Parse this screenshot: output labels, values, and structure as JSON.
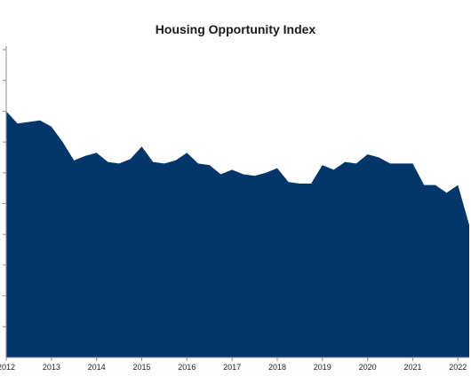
{
  "colors": {
    "area_fill": "#04366C",
    "background": "#ffffff",
    "axis": "#8c8c8c"
  },
  "chart_data": {
    "type": "area",
    "title": "Housing Opportunity Index",
    "xlabel": "",
    "ylabel": "",
    "grid": false,
    "legend": "none",
    "x_range": [
      2012.0,
      2022.25
    ],
    "y_range": [
      0,
      10
    ],
    "y_ticks": [
      1,
      2,
      3,
      4,
      5,
      6,
      7,
      8,
      9,
      10
    ],
    "x_tick_labels": [
      "2012",
      "2013",
      "2014",
      "2015",
      "2016",
      "2017",
      "2018",
      "2019",
      "2020",
      "2021",
      "2022"
    ],
    "x_tick_values": [
      2012,
      2013,
      2014,
      2015,
      2016,
      2017,
      2018,
      2019,
      2020,
      2021,
      2022
    ],
    "series": [
      {
        "x": [
          2012.0,
          2012.25,
          2012.5,
          2012.75,
          2013.0,
          2013.25,
          2013.5,
          2013.75,
          2014.0,
          2014.25,
          2014.5,
          2014.75,
          2015.0,
          2015.25,
          2015.5,
          2015.75,
          2016.0,
          2016.25,
          2016.5,
          2016.75,
          2017.0,
          2017.25,
          2017.5,
          2017.75,
          2018.0,
          2018.25,
          2018.5,
          2018.75,
          2019.0,
          2019.25,
          2019.5,
          2019.75,
          2020.0,
          2020.25,
          2020.5,
          2020.75,
          2021.0,
          2021.25,
          2021.5,
          2021.75,
          2022.0,
          2022.25
        ],
        "values": [
          8.0,
          7.6,
          7.65,
          7.7,
          7.5,
          7.0,
          6.4,
          6.55,
          6.65,
          6.35,
          6.3,
          6.45,
          6.85,
          6.35,
          6.3,
          6.4,
          6.65,
          6.3,
          6.25,
          5.95,
          6.1,
          5.95,
          5.9,
          6.0,
          6.15,
          5.7,
          5.65,
          5.65,
          6.25,
          6.1,
          6.35,
          6.3,
          6.6,
          6.5,
          6.3,
          6.3,
          6.3,
          5.6,
          5.6,
          5.35,
          5.6,
          4.3
        ]
      }
    ]
  }
}
